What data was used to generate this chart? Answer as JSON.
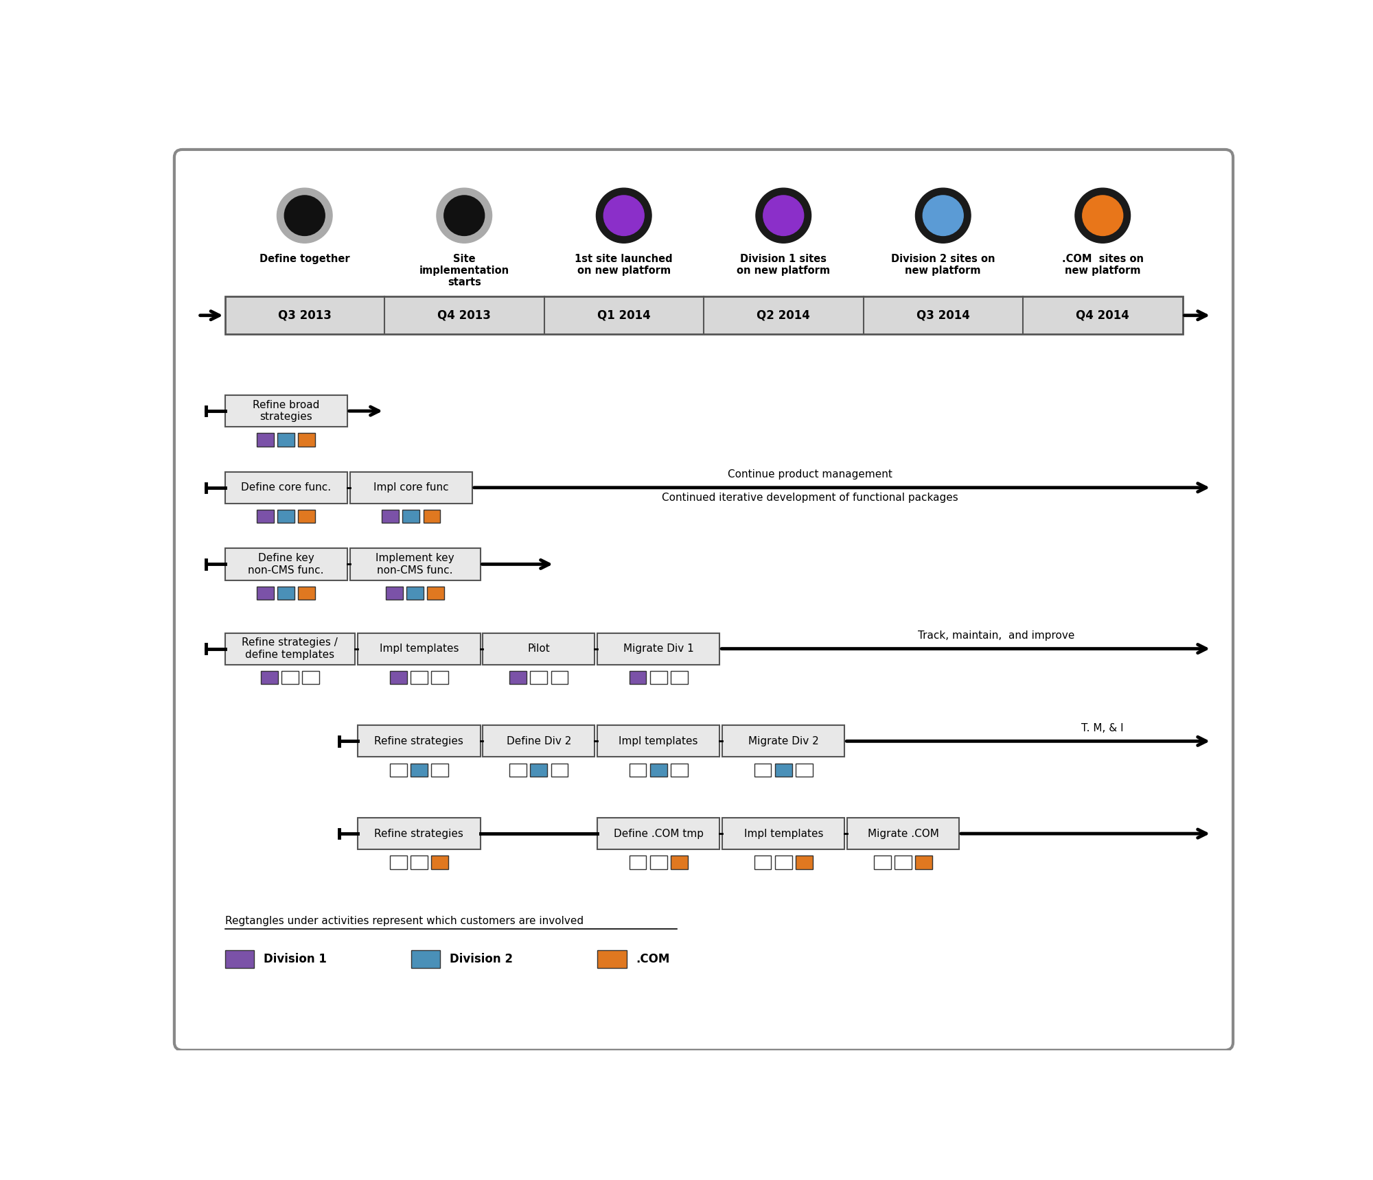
{
  "fig_width": 20.0,
  "fig_height": 17.2,
  "bg_color": "#ffffff",
  "border_color": "#888888",
  "milestone_labels": [
    "Define together",
    "Site\nimplementation\nstarts",
    "1st site launched\non new platform",
    "Division 1 sites\non new platform",
    "Division 2 sites on\nnew platform",
    ".COM  sites on\nnew platform"
  ],
  "quarters": [
    "Q3 2013",
    "Q4 2013",
    "Q1 2014",
    "Q2 2014",
    "Q3 2014",
    "Q4 2014"
  ],
  "purple": "#7B52A8",
  "blue": "#4A90B8",
  "orange": "#E07820",
  "box_bg": "#E8E8E8",
  "box_border": "#555555"
}
